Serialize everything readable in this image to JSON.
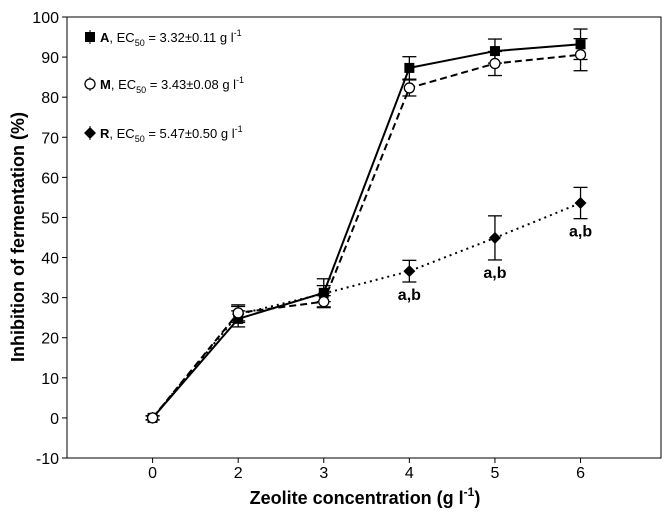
{
  "chart_data": {
    "type": "line",
    "x_label_parts": [
      "Zeolite concentration (g l",
      "-1",
      ")"
    ],
    "y_label": "Inhibition of fermentation (%)",
    "categories": [
      "0",
      "2",
      "3",
      "4",
      "5",
      "6"
    ],
    "ylim": [
      -10,
      100
    ],
    "yticks": [
      -10,
      0,
      10,
      20,
      30,
      40,
      50,
      60,
      70,
      80,
      90,
      100
    ],
    "grid": false,
    "series": [
      {
        "name": "A",
        "legend_rest": [
          ", EC",
          "50",
          " = 3.32±0.11 g l",
          "-1"
        ],
        "color": "#000000",
        "marker": "square",
        "dash": "solid",
        "values": [
          0,
          24.7,
          31.2,
          87.3,
          91.5,
          93.2
        ],
        "errors": [
          0.5,
          2,
          3.5,
          2.8,
          3,
          3.8
        ]
      },
      {
        "name": "M",
        "legend_rest": [
          ", EC",
          "50",
          " = 3.43±0.08 g l",
          "-1"
        ],
        "color": "#000000",
        "marker": "circle",
        "dash": "dashed",
        "values": [
          0,
          26.2,
          29,
          82.3,
          88.4,
          90.6
        ],
        "errors": [
          0.5,
          2,
          1.5,
          2,
          3,
          4
        ]
      },
      {
        "name": "R",
        "legend_rest": [
          ", EC",
          "50",
          " = 5.47±0.50 g l",
          "-1"
        ],
        "color": "#000000",
        "marker": "diamond",
        "dash": "dotted",
        "values": [
          0,
          25.8,
          31,
          36.6,
          44.9,
          53.6
        ],
        "errors": [
          0.5,
          2,
          2,
          2.7,
          5.5,
          3.9
        ],
        "annotations": [
          null,
          null,
          null,
          "a,b",
          "a,b",
          "a,b"
        ]
      }
    ]
  }
}
